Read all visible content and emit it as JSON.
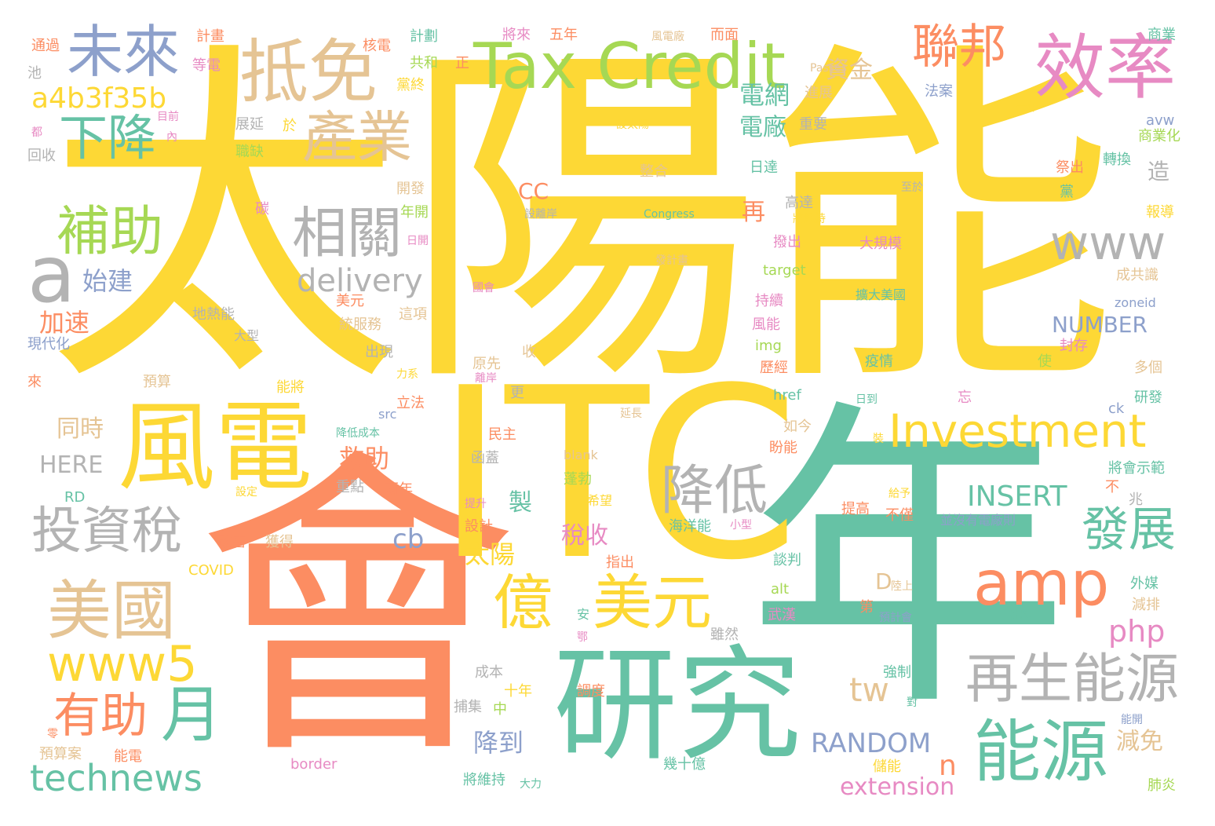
{
  "palette": {
    "yellow": "#fdd835",
    "teal": "#66c2a5",
    "orange": "#fc8d62",
    "tan": "#e5c494",
    "gray": "#b3b3b3",
    "blue": "#8da0cb",
    "pink": "#e78ac3",
    "green": "#a6d854"
  },
  "words": [
    {
      "text": "太陽能",
      "color": "yellow"
    },
    {
      "text": "會",
      "color": "orange"
    },
    {
      "text": "年",
      "color": "teal"
    },
    {
      "text": "ITC",
      "color": "yellow"
    },
    {
      "text": "研究",
      "color": "teal"
    },
    {
      "text": "Tax Credit",
      "color": "green"
    },
    {
      "text": "風電",
      "color": "yellow"
    },
    {
      "text": "抵免",
      "color": "tan"
    },
    {
      "text": "未來",
      "color": "blue"
    },
    {
      "text": "效率",
      "color": "pink"
    },
    {
      "text": "聯邦",
      "color": "orange"
    },
    {
      "text": "產業",
      "color": "tan"
    },
    {
      "text": "下降",
      "color": "teal"
    },
    {
      "text": "a4b3f35b",
      "color": "yellow"
    },
    {
      "text": "補助",
      "color": "green"
    },
    {
      "text": "相關",
      "color": "gray"
    },
    {
      "text": "a",
      "color": "gray"
    },
    {
      "text": "www",
      "color": "gray"
    },
    {
      "text": "Investment",
      "color": "yellow"
    },
    {
      "text": "amp",
      "color": "orange"
    },
    {
      "text": "投資稅",
      "color": "gray"
    },
    {
      "text": "降低",
      "color": "gray"
    },
    {
      "text": "發展",
      "color": "teal"
    },
    {
      "text": "美國",
      "color": "tan"
    },
    {
      "text": "億",
      "color": "yellow"
    },
    {
      "text": "美元",
      "color": "yellow"
    },
    {
      "text": "www5",
      "color": "yellow"
    },
    {
      "text": "有助",
      "color": "orange"
    },
    {
      "text": "月",
      "color": "teal"
    },
    {
      "text": "technews",
      "color": "teal"
    },
    {
      "text": "再生能源",
      "color": "gray"
    },
    {
      "text": "能源",
      "color": "teal"
    },
    {
      "text": "delivery",
      "color": "gray"
    },
    {
      "text": "php",
      "color": "pink"
    },
    {
      "text": "tw",
      "color": "tan"
    },
    {
      "text": "INSERT",
      "color": "teal"
    },
    {
      "text": "NUMBER",
      "color": "blue"
    },
    {
      "text": "RANDOM",
      "color": "blue"
    },
    {
      "text": "extension",
      "color": "pink"
    },
    {
      "text": "cb",
      "color": "blue"
    },
    {
      "text": "資金",
      "color": "tan"
    },
    {
      "text": "電網",
      "color": "teal"
    },
    {
      "text": "電廠",
      "color": "teal"
    },
    {
      "text": "始建",
      "color": "blue"
    },
    {
      "text": "加速",
      "color": "orange"
    },
    {
      "text": "救助",
      "color": "orange"
    },
    {
      "text": "同時",
      "color": "tan"
    },
    {
      "text": "HERE",
      "color": "gray"
    },
    {
      "text": "太陽",
      "color": "yellow"
    },
    {
      "text": "稅收",
      "color": "pink"
    },
    {
      "text": "降到",
      "color": "blue"
    },
    {
      "text": "CC",
      "color": "orange"
    },
    {
      "text": "再",
      "color": "orange"
    },
    {
      "text": "製",
      "color": "teal"
    },
    {
      "text": "n",
      "color": "orange"
    },
    {
      "text": "D",
      "color": "tan"
    },
    {
      "text": "減免",
      "color": "tan"
    },
    {
      "text": "造",
      "color": "gray"
    },
    {
      "text": "計畫",
      "color": "orange"
    },
    {
      "text": "通過",
      "color": "orange"
    },
    {
      "text": "核電",
      "color": "orange"
    },
    {
      "text": "計劃",
      "color": "teal"
    },
    {
      "text": "將來",
      "color": "pink"
    },
    {
      "text": "五年",
      "color": "orange"
    },
    {
      "text": "風電廠",
      "color": "tan"
    },
    {
      "text": "而面",
      "color": "orange"
    },
    {
      "text": "商業",
      "color": "teal"
    },
    {
      "text": "等電",
      "color": "pink"
    },
    {
      "text": "共和",
      "color": "green"
    },
    {
      "text": "正",
      "color": "orange"
    },
    {
      "text": "黨終",
      "color": "yellow"
    },
    {
      "text": "Passes",
      "color": "tan"
    },
    {
      "text": "法案",
      "color": "blue"
    },
    {
      "text": "一年",
      "color": "yellow"
    },
    {
      "text": "進展",
      "color": "tan"
    },
    {
      "text": "池",
      "color": "gray"
    },
    {
      "text": "目前",
      "color": "pink"
    },
    {
      "text": "都",
      "color": "pink"
    },
    {
      "text": "回收",
      "color": "gray"
    },
    {
      "text": "內",
      "color": "pink"
    },
    {
      "text": "展延",
      "color": "gray"
    },
    {
      "text": "於",
      "color": "yellow"
    },
    {
      "text": "職缺",
      "color": "green"
    },
    {
      "text": "重要",
      "color": "gray"
    },
    {
      "text": "設太陽",
      "color": "yellow"
    },
    {
      "text": "整合",
      "color": "tan"
    },
    {
      "text": "日達",
      "color": "teal"
    },
    {
      "text": "avw",
      "color": "blue"
    },
    {
      "text": "商業化",
      "color": "green"
    },
    {
      "text": "祭出",
      "color": "orange"
    },
    {
      "text": "轉換",
      "color": "teal"
    },
    {
      "text": "黨",
      "color": "teal"
    },
    {
      "text": "至於",
      "color": "gray"
    },
    {
      "text": "開發",
      "color": "tan"
    },
    {
      "text": "碳",
      "color": "pink"
    },
    {
      "text": "年開",
      "color": "green"
    },
    {
      "text": "設離岸",
      "color": "gray"
    },
    {
      "text": "Congress",
      "color": "teal"
    },
    {
      "text": "高達",
      "color": "gray"
    },
    {
      "text": "將維持",
      "color": "yellow"
    },
    {
      "text": "報導",
      "color": "yellow"
    },
    {
      "text": "日開",
      "color": "pink"
    },
    {
      "text": "發計畫",
      "color": "tan"
    },
    {
      "text": "撥出",
      "color": "pink"
    },
    {
      "text": "大規模",
      "color": "pink"
    },
    {
      "text": "target",
      "color": "green"
    },
    {
      "text": "國會",
      "color": "pink"
    },
    {
      "text": "成共識",
      "color": "tan"
    },
    {
      "text": "美元",
      "color": "orange"
    },
    {
      "text": "這項",
      "color": "tan"
    },
    {
      "text": "持續",
      "color": "pink"
    },
    {
      "text": "擴大美國",
      "color": "teal"
    },
    {
      "text": "zoneid",
      "color": "blue"
    },
    {
      "text": "地熱能",
      "color": "gray"
    },
    {
      "text": "統服務",
      "color": "tan"
    },
    {
      "text": "風能",
      "color": "pink"
    },
    {
      "text": "封存",
      "color": "pink"
    },
    {
      "text": "現代化",
      "color": "blue"
    },
    {
      "text": "大型",
      "color": "gray"
    },
    {
      "text": "出現",
      "color": "gray"
    },
    {
      "text": "收",
      "color": "tan"
    },
    {
      "text": "img",
      "color": "green"
    },
    {
      "text": "原先",
      "color": "tan"
    },
    {
      "text": "歷經",
      "color": "orange"
    },
    {
      "text": "疫情",
      "color": "teal"
    },
    {
      "text": "使",
      "color": "green"
    },
    {
      "text": "多個",
      "color": "tan"
    },
    {
      "text": "來",
      "color": "orange"
    },
    {
      "text": "預算",
      "color": "tan"
    },
    {
      "text": "力系",
      "color": "yellow"
    },
    {
      "text": "能將",
      "color": "yellow"
    },
    {
      "text": "離岸",
      "color": "pink"
    },
    {
      "text": "更",
      "color": "gray"
    },
    {
      "text": "href",
      "color": "teal"
    },
    {
      "text": "日到",
      "color": "teal"
    },
    {
      "text": "忘",
      "color": "pink"
    },
    {
      "text": "研發",
      "color": "teal"
    },
    {
      "text": "立法",
      "color": "orange"
    },
    {
      "text": "src",
      "color": "blue"
    },
    {
      "text": "延長",
      "color": "tan"
    },
    {
      "text": "降低成本",
      "color": "teal"
    },
    {
      "text": "民主",
      "color": "orange"
    },
    {
      "text": "如今",
      "color": "tan"
    },
    {
      "text": "盼能",
      "color": "orange"
    },
    {
      "text": "ck",
      "color": "blue"
    },
    {
      "text": "裝",
      "color": "yellow"
    },
    {
      "text": "blank",
      "color": "tan"
    },
    {
      "text": "函蓋",
      "color": "gray"
    },
    {
      "text": "將會示範",
      "color": "teal"
    },
    {
      "text": "RD",
      "color": "teal"
    },
    {
      "text": "重點",
      "color": "gray"
    },
    {
      "text": "兩年",
      "color": "orange"
    },
    {
      "text": "蓬勃",
      "color": "green"
    },
    {
      "text": "給予",
      "color": "yellow"
    },
    {
      "text": "不",
      "color": "orange"
    },
    {
      "text": "設定",
      "color": "yellow"
    },
    {
      "text": "提升",
      "color": "pink"
    },
    {
      "text": "希望",
      "color": "yellow"
    },
    {
      "text": "提高",
      "color": "orange"
    },
    {
      "text": "不僅",
      "color": "orange"
    },
    {
      "text": "兆",
      "color": "gray"
    },
    {
      "text": "並沒有電廠則",
      "color": "blue"
    },
    {
      "text": "海洋能",
      "color": "teal"
    },
    {
      "text": "小型",
      "color": "pink"
    },
    {
      "text": "設計",
      "color": "orange"
    },
    {
      "text": "改善",
      "color": "orange"
    },
    {
      "text": "獲得",
      "color": "tan"
    },
    {
      "text": "COVID",
      "color": "yellow"
    },
    {
      "text": "指出",
      "color": "orange"
    },
    {
      "text": "談判",
      "color": "teal"
    },
    {
      "text": "陸上",
      "color": "tan"
    },
    {
      "text": "外媒",
      "color": "teal"
    },
    {
      "text": "alt",
      "color": "green"
    },
    {
      "text": "第",
      "color": "orange"
    },
    {
      "text": "減排",
      "color": "tan"
    },
    {
      "text": "安",
      "color": "teal"
    },
    {
      "text": "武漢",
      "color": "pink"
    },
    {
      "text": "預計會",
      "color": "blue"
    },
    {
      "text": "材料",
      "color": "teal"
    },
    {
      "text": "鄂",
      "color": "pink"
    },
    {
      "text": "雖然",
      "color": "gray"
    },
    {
      "text": "成本",
      "color": "gray"
    },
    {
      "text": "強制",
      "color": "teal"
    },
    {
      "text": "十年",
      "color": "yellow"
    },
    {
      "text": "調度",
      "color": "orange"
    },
    {
      "text": "捕集",
      "color": "gray"
    },
    {
      "text": "對",
      "color": "teal"
    },
    {
      "text": "中",
      "color": "green"
    },
    {
      "text": "能開",
      "color": "blue"
    },
    {
      "text": "零",
      "color": "orange"
    },
    {
      "text": "預算案",
      "color": "tan"
    },
    {
      "text": "能電",
      "color": "orange"
    },
    {
      "text": "border",
      "color": "pink"
    },
    {
      "text": "幾十億",
      "color": "teal"
    },
    {
      "text": "儲能",
      "color": "yellow"
    },
    {
      "text": "將維持",
      "color": "teal"
    },
    {
      "text": "大力",
      "color": "teal"
    },
    {
      "text": "肺炎",
      "color": "green"
    }
  ]
}
